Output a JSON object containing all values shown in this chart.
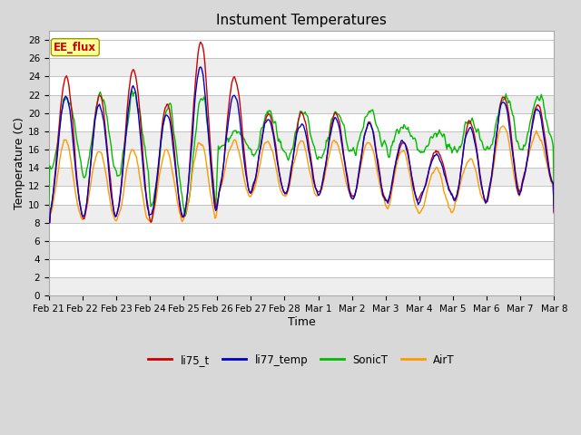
{
  "title": "Instument Temperatures",
  "xlabel": "Time",
  "ylabel": "Temperature (C)",
  "ylim": [
    0,
    29
  ],
  "yticks": [
    0,
    2,
    4,
    6,
    8,
    10,
    12,
    14,
    16,
    18,
    20,
    22,
    24,
    26,
    28
  ],
  "colors": {
    "li75_t": "#cc0000",
    "li77_temp": "#0000cc",
    "SonicT": "#00bb00",
    "AirT": "#ff9900"
  },
  "fig_bg_color": "#d8d8d8",
  "plot_bg_color": "#ffffff",
  "grid_bg_alt": "#e8e8e8",
  "annotation_text": "EE_flux",
  "annotation_bg": "#ffff99",
  "annotation_border": "#999900",
  "grid_color": "#cccccc",
  "xtick_labels": [
    "Feb 21",
    "Feb 22",
    "Feb 23",
    "Feb 24",
    "Feb 25",
    "Feb 26",
    "Feb 27",
    "Feb 28",
    "Mar 1",
    "Mar 2",
    "Mar 3",
    "Mar 4",
    "Mar 5",
    "Mar 6",
    "Mar 7",
    "Mar 8"
  ],
  "line_width": 1.0,
  "title_fontsize": 11,
  "label_fontsize": 9,
  "tick_fontsize": 7.5
}
